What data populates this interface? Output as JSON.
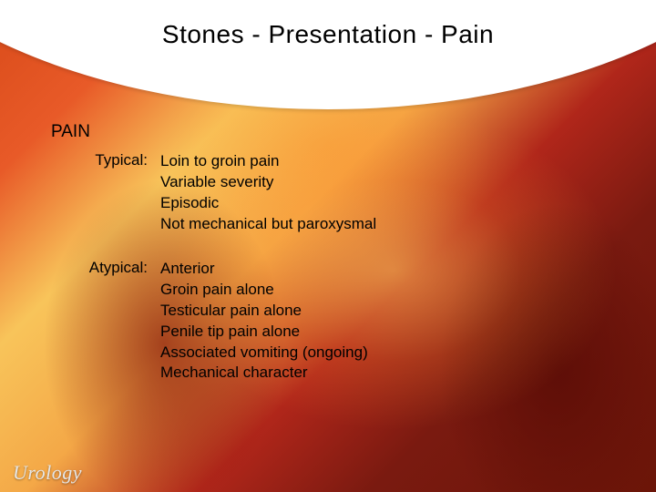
{
  "title": "Stones - Presentation - Pain",
  "heading": "PAIN",
  "groups": [
    {
      "label": "Typical:",
      "items": [
        "Loin to groin pain",
        "Variable severity",
        "Episodic",
        "Not mechanical but paroxysmal"
      ]
    },
    {
      "label": "Atypical:",
      "items": [
        "Anterior",
        "Groin pain alone",
        "Testicular pain alone",
        "Penile tip pain alone",
        "Associated vomiting (ongoing)",
        "Mechanical character"
      ]
    }
  ],
  "footer": "Urology"
}
